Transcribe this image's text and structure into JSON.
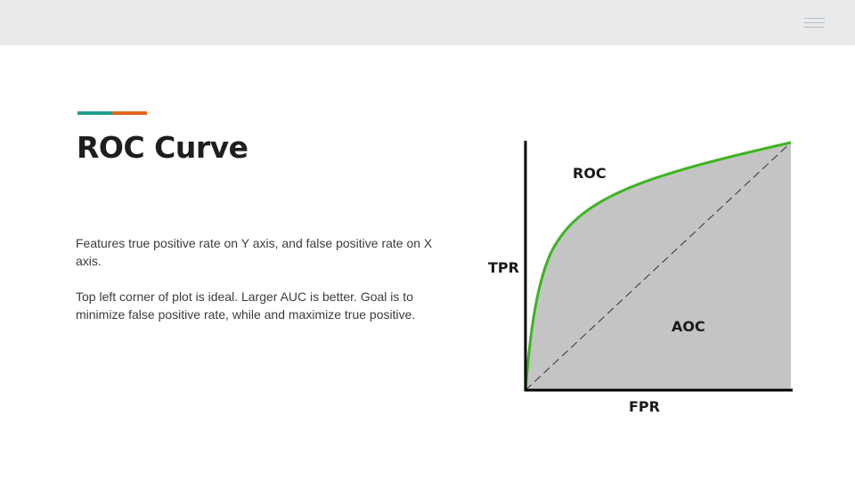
{
  "slide": {
    "title": "ROC Curve",
    "paragraphs": [
      "Features true positive rate on Y axis, and false positive rate on X axis.",
      "Top left corner of plot is ideal. Larger AUC is better. Goal is to minimize false positive rate, while and maximize true positive."
    ]
  },
  "header": {
    "menu_icon": "hamburger-menu-icon"
  },
  "colors": {
    "topbar": "#e8eaeb",
    "accent_teal": "#1f9e8f",
    "accent_orange": "#e0651e",
    "roc_curve": "#3cb521",
    "area_fill": "#c4c4c4"
  },
  "figure": {
    "curve_label": "ROC",
    "area_label": "AOC",
    "ylabel": "TPR",
    "xlabel": "FPR"
  }
}
